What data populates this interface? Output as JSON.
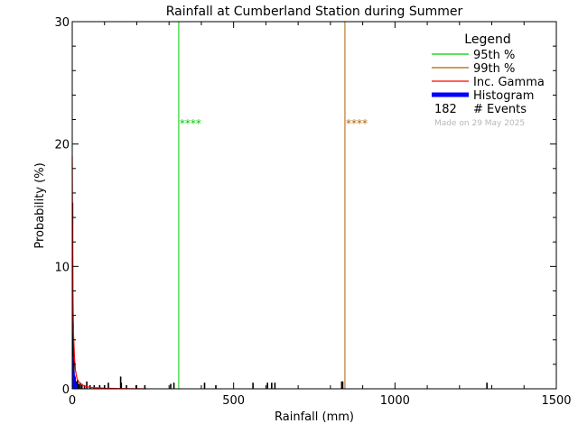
{
  "chart_data": {
    "type": "bar",
    "title": "Rainfall at Cumberland Station during Summer",
    "xlabel": "Rainfall (mm)",
    "ylabel": "Probability (%)",
    "xlim": [
      0,
      1500
    ],
    "ylim": [
      0,
      30
    ],
    "x_ticks": [
      "0",
      "500",
      "1000",
      "1500"
    ],
    "y_ticks": [
      "0",
      "10",
      "20",
      "30"
    ],
    "percentile_markers": [
      {
        "label": "95th %",
        "x": 330,
        "color": "#00cc00",
        "annotation": "****"
      },
      {
        "label": "99th %",
        "x": 845,
        "color": "#b06000",
        "annotation": "****"
      }
    ],
    "histogram": {
      "color": "#0000ff",
      "bins": [
        {
          "x": 2,
          "value": 2.6
        },
        {
          "x": 5,
          "value": 1.4
        },
        {
          "x": 8,
          "value": 1.0
        },
        {
          "x": 11,
          "value": 0.5
        },
        {
          "x": 14,
          "value": 0.3
        }
      ]
    },
    "events": {
      "color": "#000000",
      "bars": [
        {
          "x": 1,
          "value": 15.2
        },
        {
          "x": 3,
          "value": 5.3
        },
        {
          "x": 5,
          "value": 2.3
        },
        {
          "x": 7,
          "value": 1.1
        },
        {
          "x": 9,
          "value": 0.9
        },
        {
          "x": 12,
          "value": 0.6
        },
        {
          "x": 16,
          "value": 0.7
        },
        {
          "x": 20,
          "value": 0.4
        },
        {
          "x": 25,
          "value": 0.5
        },
        {
          "x": 30,
          "value": 0.4
        },
        {
          "x": 38,
          "value": 0.3
        },
        {
          "x": 45,
          "value": 0.6
        },
        {
          "x": 55,
          "value": 0.3
        },
        {
          "x": 68,
          "value": 0.3
        },
        {
          "x": 85,
          "value": 0.3
        },
        {
          "x": 100,
          "value": 0.3
        },
        {
          "x": 112,
          "value": 0.5
        },
        {
          "x": 150,
          "value": 1.0
        },
        {
          "x": 152,
          "value": 0.5
        },
        {
          "x": 168,
          "value": 0.3
        },
        {
          "x": 198,
          "value": 0.3
        },
        {
          "x": 225,
          "value": 0.3
        },
        {
          "x": 305,
          "value": 0.4
        },
        {
          "x": 315,
          "value": 0.5
        },
        {
          "x": 410,
          "value": 0.5
        },
        {
          "x": 445,
          "value": 0.3
        },
        {
          "x": 560,
          "value": 0.5
        },
        {
          "x": 605,
          "value": 0.5
        },
        {
          "x": 618,
          "value": 0.5
        },
        {
          "x": 628,
          "value": 0.5
        },
        {
          "x": 835,
          "value": 0.6
        },
        {
          "x": 838,
          "value": 0.6
        },
        {
          "x": 1285,
          "value": 0.5
        }
      ]
    },
    "gamma_curve": {
      "color": "#ff0000",
      "points": [
        [
          0,
          19
        ],
        [
          1,
          12
        ],
        [
          2,
          8
        ],
        [
          4,
          4.5
        ],
        [
          7,
          2.5
        ],
        [
          10,
          1.5
        ],
        [
          15,
          0.8
        ],
        [
          25,
          0.4
        ],
        [
          40,
          0.2
        ],
        [
          60,
          0.1
        ],
        [
          100,
          0.05
        ],
        [
          150,
          0.02
        ],
        [
          230,
          0.0
        ]
      ]
    },
    "legend": {
      "title": "Legend",
      "placement": "top-right",
      "entries": [
        {
          "label": "95th %",
          "color": "#00cc00",
          "thick": false
        },
        {
          "label": "99th %",
          "color": "#b06000",
          "thick": false
        },
        {
          "label": "Inc. Gamma",
          "color": "#ff0000",
          "thick": false
        },
        {
          "label": "Histogram",
          "color": "#0000ff",
          "thick": true
        }
      ],
      "events_count": "182",
      "events_label": "# Events",
      "footnote": "Made on 29 May 2025"
    }
  }
}
